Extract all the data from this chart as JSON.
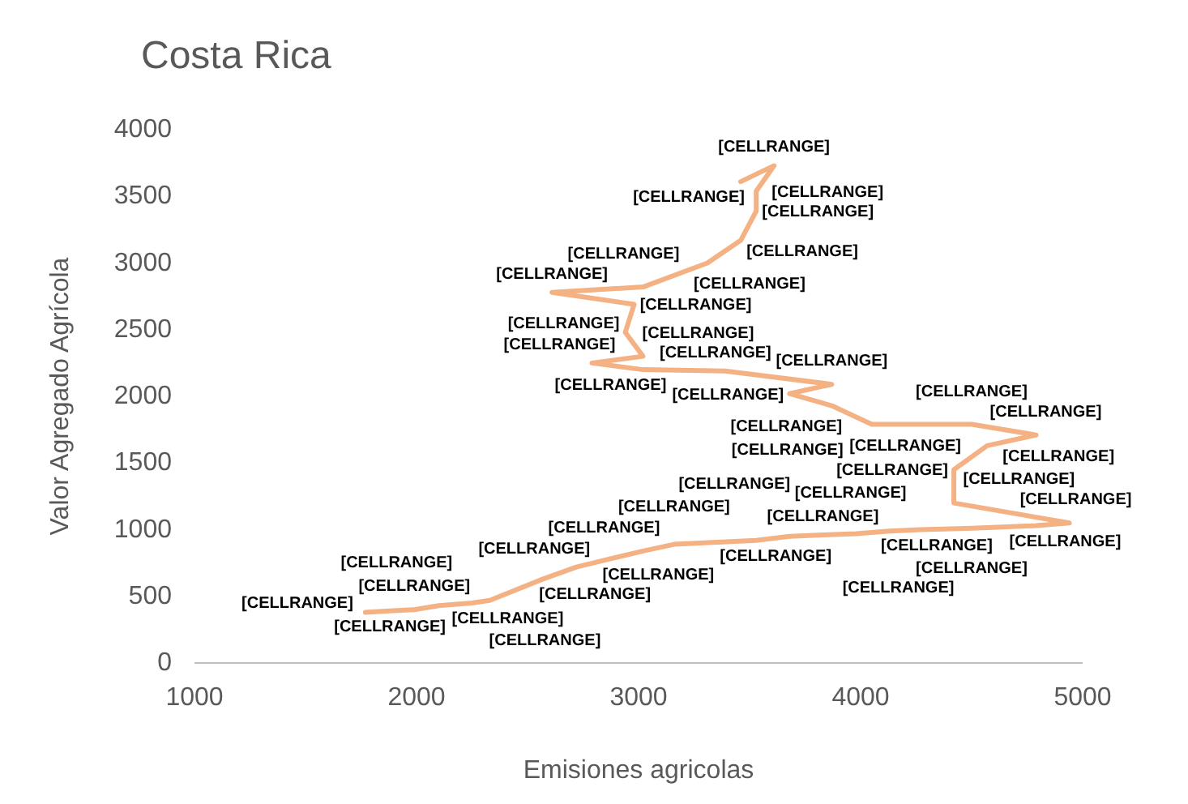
{
  "chart_data": {
    "type": "line",
    "title": "Costa Rica",
    "xlabel": "Emisiones agricolas",
    "ylabel": "Valor Agregado Agrícola",
    "xlim": [
      1000,
      5000
    ],
    "xticks": [
      1000,
      2000,
      3000,
      4000,
      5000
    ],
    "ylim": [
      0,
      4000
    ],
    "yticks": [
      0,
      500,
      1000,
      1500,
      2000,
      2500,
      3000,
      3500,
      4000
    ],
    "grid": false,
    "marker": "none",
    "line_style": "solid",
    "x": [
      1770,
      1880,
      1990,
      2100,
      2250,
      2330,
      2570,
      2720,
      2870,
      3020,
      3160,
      3530,
      3680,
      3830,
      3980,
      4130,
      4270,
      4500,
      4640,
      4790,
      4940,
      4420,
      4420,
      4570,
      4790,
      4500,
      4050,
      3870,
      3680,
      3870,
      3390,
      3020,
      2790,
      3020,
      2940,
      2980,
      2610,
      3020,
      3310,
      3460,
      3530,
      3530,
      3610,
      3460
    ],
    "series": [
      {
        "color": "#f4b183",
        "values": [
          380,
          390,
          400,
          430,
          450,
          470,
          630,
          720,
          780,
          840,
          890,
          920,
          950,
          960,
          970,
          990,
          1000,
          1010,
          1020,
          1030,
          1050,
          1200,
          1450,
          1630,
          1710,
          1790,
          1790,
          1930,
          2020,
          2090,
          2190,
          2200,
          2250,
          2300,
          2480,
          2690,
          2780,
          2820,
          3000,
          3170,
          3390,
          3540,
          3730,
          3610
        ],
        "value_labels": [
          "[CELLRANGE]",
          "[CELLRANGE]",
          "[CELLRANGE]",
          "[CELLRANGE]",
          "[CELLRANGE]",
          "[CELLRANGE]",
          "[CELLRANGE]",
          "[CELLRANGE]",
          "[CELLRANGE]",
          "[CELLRANGE]",
          "[CELLRANGE]",
          "[CELLRANGE]",
          "[CELLRANGE]",
          "[CELLRANGE]",
          "[CELLRANGE]",
          "[CELLRANGE]",
          "[CELLRANGE]",
          "[CELLRANGE]",
          "[CELLRANGE]",
          "[CELLRANGE]",
          "[CELLRANGE]",
          "[CELLRANGE]",
          "[CELLRANGE]",
          "[CELLRANGE]",
          "[CELLRANGE]",
          "[CELLRANGE]",
          "[CELLRANGE]",
          "[CELLRANGE]",
          "[CELLRANGE]",
          "[CELLRANGE]",
          "[CELLRANGE]",
          "[CELLRANGE]",
          "[CELLRANGE]",
          "[CELLRANGE]",
          "[CELLRANGE]",
          "[CELLRANGE]",
          "[CELLRANGE]",
          "[CELLRANGE]",
          "[CELLRANGE]",
          "[CELLRANGE]",
          "[CELLRANGE]",
          "[CELLRANGE]",
          "[CELLRANGE]",
          "[CELLRANGE]"
        ]
      }
    ]
  }
}
